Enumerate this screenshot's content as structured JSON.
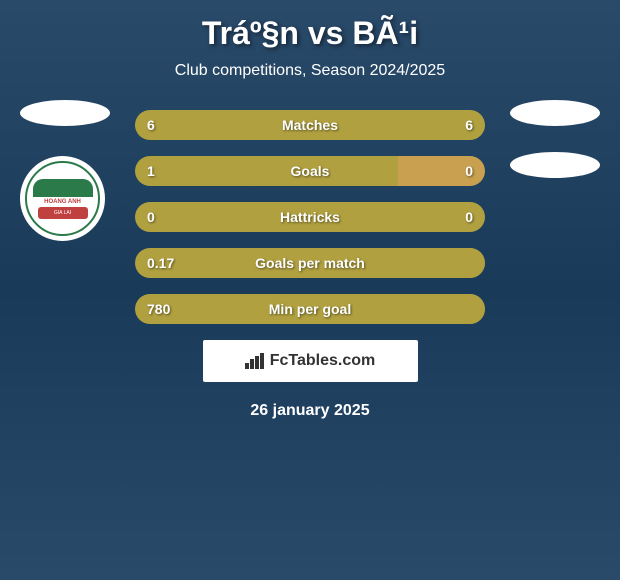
{
  "header": {
    "title": "Tráº§n vs BÃ¹i",
    "subtitle": "Club competitions, Season 2024/2025"
  },
  "stats": [
    {
      "label": "Matches",
      "left_value": "6",
      "right_value": "6",
      "left_width_pct": 50,
      "right_width_pct": 50,
      "left_color": "#b0a040",
      "right_color": "#b0a040"
    },
    {
      "label": "Goals",
      "left_value": "1",
      "right_value": "0",
      "left_width_pct": 75,
      "right_width_pct": 25,
      "left_color": "#b0a040",
      "right_color": "#c8a050"
    },
    {
      "label": "Hattricks",
      "left_value": "0",
      "right_value": "0",
      "left_width_pct": 50,
      "right_width_pct": 50,
      "left_color": "#b0a040",
      "right_color": "#b0a040"
    },
    {
      "label": "Goals per match",
      "left_value": "0.17",
      "right_value": "",
      "left_width_pct": 100,
      "right_width_pct": 0,
      "left_color": "#b0a040",
      "right_color": "#b0a040"
    },
    {
      "label": "Min per goal",
      "left_value": "780",
      "right_value": "",
      "left_width_pct": 100,
      "right_width_pct": 0,
      "left_color": "#b0a040",
      "right_color": "#b0a040"
    }
  ],
  "club_badge": {
    "text_line1": "HOANG ANH",
    "text_line2": "GIA LAI"
  },
  "footer": {
    "logo_text": "FcTables.com",
    "date": "26 january 2025"
  },
  "colors": {
    "background_gradient_top": "#2a4a6a",
    "background_gradient_mid": "#1a3a5a",
    "bar_primary": "#b0a040",
    "bar_secondary": "#c8a050",
    "bar_bg": "#7a7a3a",
    "text": "#ffffff"
  }
}
